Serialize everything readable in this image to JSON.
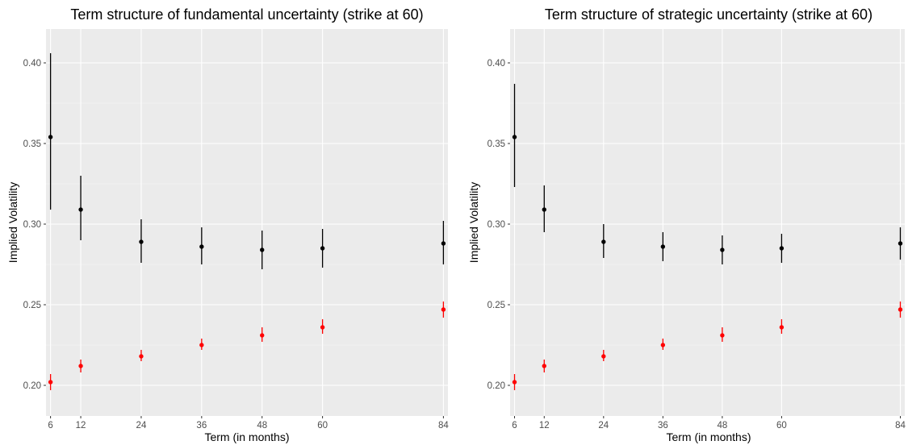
{
  "chart_data": [
    {
      "type": "scatter",
      "title": "Term structure of fundamental uncertainty (strike at 60)",
      "xlabel": "Term (in months)",
      "ylabel": "Implied Volatility",
      "x_ticks": [
        6,
        12,
        24,
        36,
        48,
        60,
        84
      ],
      "y_ticks": [
        "0.20",
        "0.25",
        "0.30",
        "0.35",
        "0.40"
      ],
      "xlim": [
        5.1,
        84.9
      ],
      "ylim": [
        0.181,
        0.421
      ],
      "grid": true,
      "series": [
        {
          "color": "#000000",
          "points": [
            {
              "x": 6,
              "y": 0.354,
              "lo": 0.309,
              "hi": 0.406
            },
            {
              "x": 12,
              "y": 0.309,
              "lo": 0.29,
              "hi": 0.33
            },
            {
              "x": 24,
              "y": 0.289,
              "lo": 0.276,
              "hi": 0.303
            },
            {
              "x": 36,
              "y": 0.286,
              "lo": 0.275,
              "hi": 0.298
            },
            {
              "x": 48,
              "y": 0.284,
              "lo": 0.272,
              "hi": 0.296
            },
            {
              "x": 60,
              "y": 0.285,
              "lo": 0.273,
              "hi": 0.297
            },
            {
              "x": 84,
              "y": 0.288,
              "lo": 0.275,
              "hi": 0.302
            }
          ]
        },
        {
          "color": "#ff0000",
          "points": [
            {
              "x": 6,
              "y": 0.202,
              "lo": 0.197,
              "hi": 0.207
            },
            {
              "x": 12,
              "y": 0.212,
              "lo": 0.208,
              "hi": 0.216
            },
            {
              "x": 24,
              "y": 0.218,
              "lo": 0.215,
              "hi": 0.222
            },
            {
              "x": 36,
              "y": 0.225,
              "lo": 0.222,
              "hi": 0.229
            },
            {
              "x": 48,
              "y": 0.231,
              "lo": 0.227,
              "hi": 0.236
            },
            {
              "x": 60,
              "y": 0.236,
              "lo": 0.232,
              "hi": 0.241
            },
            {
              "x": 84,
              "y": 0.247,
              "lo": 0.242,
              "hi": 0.252
            }
          ]
        }
      ]
    },
    {
      "type": "scatter",
      "title": "Term structure of strategic uncertainty (strike at 60)",
      "xlabel": "Term (in months)",
      "ylabel": "Implied Volatility",
      "x_ticks": [
        6,
        12,
        24,
        36,
        48,
        60,
        84
      ],
      "y_ticks": [
        "0.20",
        "0.25",
        "0.30",
        "0.35",
        "0.40"
      ],
      "xlim": [
        5.1,
        84.9
      ],
      "ylim": [
        0.181,
        0.421
      ],
      "grid": true,
      "series": [
        {
          "color": "#000000",
          "points": [
            {
              "x": 6,
              "y": 0.354,
              "lo": 0.323,
              "hi": 0.387
            },
            {
              "x": 12,
              "y": 0.309,
              "lo": 0.295,
              "hi": 0.324
            },
            {
              "x": 24,
              "y": 0.289,
              "lo": 0.279,
              "hi": 0.3
            },
            {
              "x": 36,
              "y": 0.286,
              "lo": 0.277,
              "hi": 0.295
            },
            {
              "x": 48,
              "y": 0.284,
              "lo": 0.275,
              "hi": 0.293
            },
            {
              "x": 60,
              "y": 0.285,
              "lo": 0.276,
              "hi": 0.294
            },
            {
              "x": 84,
              "y": 0.288,
              "lo": 0.278,
              "hi": 0.298
            }
          ]
        },
        {
          "color": "#ff0000",
          "points": [
            {
              "x": 6,
              "y": 0.202,
              "lo": 0.197,
              "hi": 0.207
            },
            {
              "x": 12,
              "y": 0.212,
              "lo": 0.208,
              "hi": 0.216
            },
            {
              "x": 24,
              "y": 0.218,
              "lo": 0.215,
              "hi": 0.222
            },
            {
              "x": 36,
              "y": 0.225,
              "lo": 0.222,
              "hi": 0.229
            },
            {
              "x": 48,
              "y": 0.231,
              "lo": 0.227,
              "hi": 0.236
            },
            {
              "x": 60,
              "y": 0.236,
              "lo": 0.232,
              "hi": 0.241
            },
            {
              "x": 84,
              "y": 0.247,
              "lo": 0.242,
              "hi": 0.252
            }
          ]
        }
      ]
    }
  ]
}
